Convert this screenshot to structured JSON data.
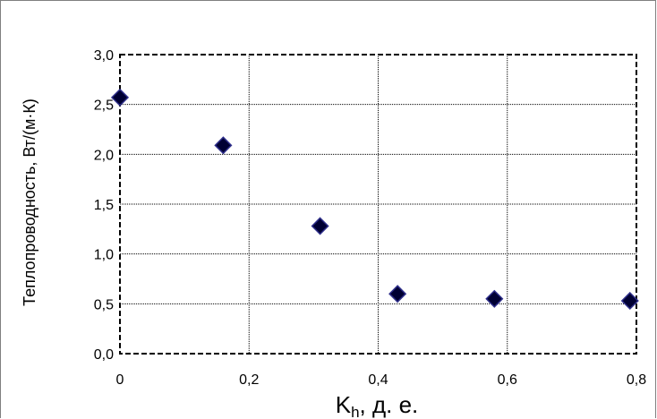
{
  "chart_data": {
    "type": "scatter",
    "title": "",
    "ylabel": "Теплопроводность, Вт/(м·К)",
    "xlabel_main": "K",
    "xlabel_sub": "h",
    "xlabel_rest": ", д. е.",
    "xlim": [
      0,
      0.8
    ],
    "ylim": [
      0,
      3.0
    ],
    "x_ticks": [
      0,
      0.2,
      0.4,
      0.6,
      0.8
    ],
    "x_tick_labels": [
      "0",
      "0,2",
      "0,4",
      "0,6",
      "0,8"
    ],
    "y_ticks": [
      0,
      0.5,
      1.0,
      1.5,
      2.0,
      2.5,
      3.0
    ],
    "y_tick_labels": [
      "0,0",
      "0,5",
      "1,0",
      "1,5",
      "2,0",
      "2,5",
      "3,0"
    ],
    "grid": true,
    "marker": "diamond",
    "marker_color": "#000033",
    "marker_edge_color": "#2e2e8a",
    "points": [
      {
        "x": 0.0,
        "y": 2.57
      },
      {
        "x": 0.16,
        "y": 2.09
      },
      {
        "x": 0.31,
        "y": 1.28
      },
      {
        "x": 0.43,
        "y": 0.6
      },
      {
        "x": 0.58,
        "y": 0.55
      },
      {
        "x": 0.79,
        "y": 0.53
      }
    ]
  }
}
